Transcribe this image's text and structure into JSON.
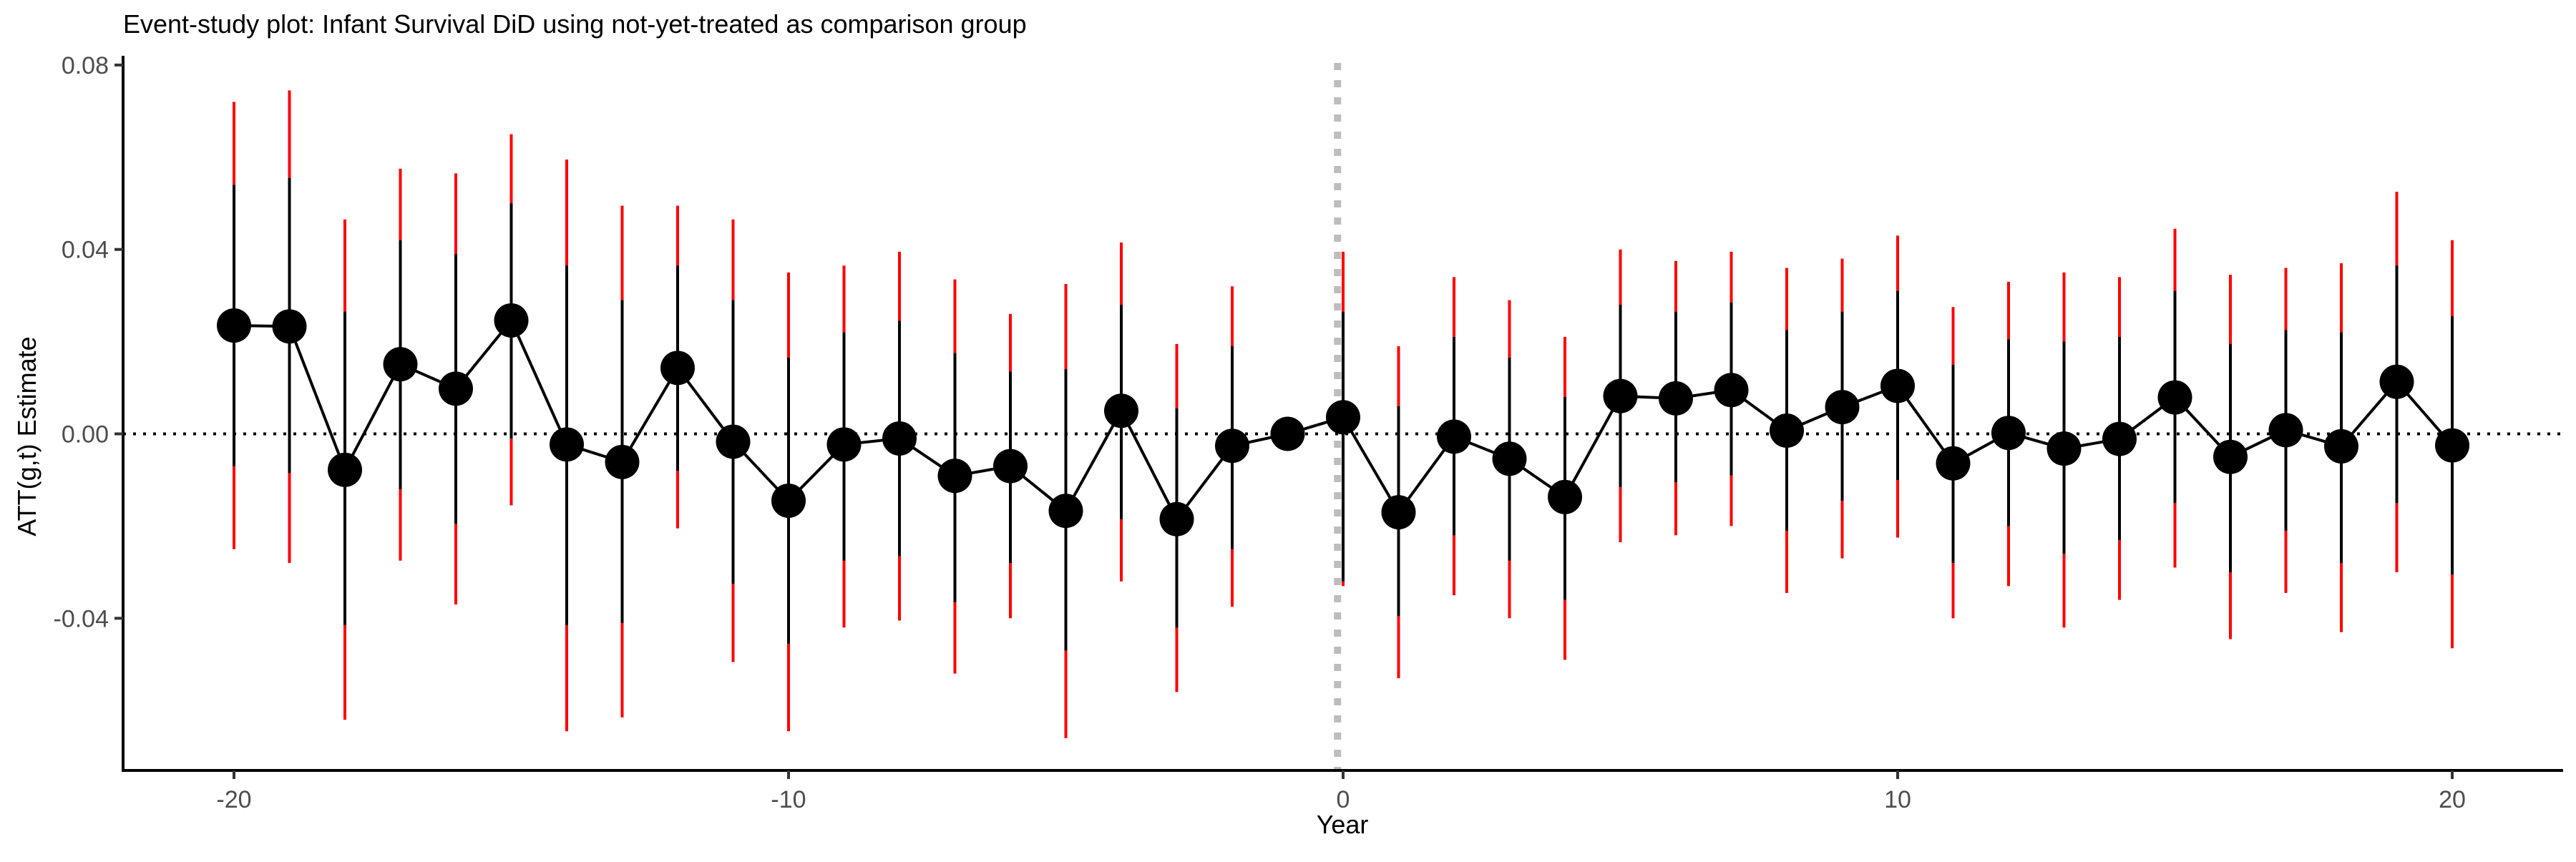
{
  "chart_data": {
    "type": "line",
    "title": "Event-study plot: Infant Survival DiD using not-yet-treated as comparison group",
    "xlabel": "Year",
    "ylabel": "ATT(g,t) Estimate",
    "xlim": [
      -22,
      22
    ],
    "ylim": [
      -0.073,
      0.082
    ],
    "x_ticks": [
      -20,
      -10,
      0,
      10,
      20
    ],
    "x_tick_labels": [
      "-20",
      "-10",
      "0",
      "10",
      "20"
    ],
    "y_ticks": [
      -0.04,
      0.0,
      0.04,
      0.08
    ],
    "y_tick_labels": [
      "-0.04",
      "0.00",
      "0.04",
      "0.08"
    ],
    "grid": false,
    "legend": "none",
    "reference_lines": {
      "horizontal_y": 0,
      "horizontal_style": "dotted black",
      "vertical_x": -0.1,
      "vertical_style": "dotted grey"
    },
    "colors": {
      "points": "#000000",
      "line": "#000000",
      "inner_interval": "#000000",
      "outer_interval": "#ff0000",
      "vline": "#bdbdbd"
    },
    "series": [
      {
        "x": [
          -20,
          -19,
          -18,
          -17,
          -16,
          -15,
          -14,
          -13,
          -12,
          -11,
          -10,
          -9,
          -8,
          -7,
          -6,
          -5,
          -4,
          -3,
          -2,
          -1,
          0,
          1,
          2,
          3,
          4,
          5,
          6,
          7,
          8,
          9,
          10,
          11,
          12,
          13,
          14,
          15,
          16,
          17,
          18,
          19,
          20
        ],
        "estimate": [
          0.0235,
          0.0233,
          -0.0078,
          0.0151,
          0.0098,
          0.0246,
          -0.0023,
          -0.0061,
          0.0143,
          -0.0017,
          -0.0145,
          -0.0023,
          -0.001,
          -0.0091,
          -0.007,
          -0.0167,
          0.005,
          -0.0185,
          -0.0026,
          0.0,
          0.0036,
          -0.017,
          -0.0006,
          -0.0054,
          -0.0137,
          0.0082,
          0.0077,
          0.0095,
          0.0007,
          0.0058,
          0.0104,
          -0.0064,
          0.0002,
          -0.0032,
          -0.0011,
          0.0079,
          -0.005,
          0.0008,
          -0.0027,
          0.0113,
          -0.0025
        ],
        "inner_low": [
          -0.007,
          -0.0085,
          -0.0415,
          -0.012,
          -0.0195,
          -0.001,
          -0.0415,
          -0.041,
          -0.008,
          -0.0325,
          -0.0455,
          -0.0275,
          -0.0265,
          -0.0365,
          -0.028,
          -0.047,
          -0.0185,
          -0.042,
          -0.025,
          0.0,
          -0.032,
          -0.0395,
          -0.022,
          -0.0275,
          -0.036,
          -0.0115,
          -0.0105,
          -0.009,
          -0.021,
          -0.0145,
          -0.01,
          -0.028,
          -0.02,
          -0.026,
          -0.023,
          -0.015,
          -0.03,
          -0.021,
          -0.028,
          -0.015,
          -0.0305
        ],
        "inner_high": [
          0.054,
          0.0555,
          0.0265,
          0.042,
          0.039,
          0.05,
          0.0365,
          0.029,
          0.0365,
          0.029,
          0.0165,
          0.022,
          0.0245,
          0.0175,
          0.0135,
          0.014,
          0.028,
          0.0055,
          0.019,
          0.0,
          0.0265,
          0.006,
          0.021,
          0.0165,
          0.008,
          0.028,
          0.0265,
          0.0285,
          0.0225,
          0.0265,
          0.031,
          0.015,
          0.0205,
          0.02,
          0.021,
          0.031,
          0.0195,
          0.0225,
          0.022,
          0.0365,
          0.0255
        ],
        "outer_low": [
          -0.025,
          -0.028,
          -0.062,
          -0.0275,
          -0.037,
          -0.0155,
          -0.0645,
          -0.0615,
          -0.0205,
          -0.0495,
          -0.0645,
          -0.042,
          -0.0405,
          -0.052,
          -0.04,
          -0.066,
          -0.032,
          -0.056,
          -0.0375,
          0.0,
          -0.033,
          -0.053,
          -0.035,
          -0.04,
          -0.049,
          -0.0235,
          -0.022,
          -0.02,
          -0.0345,
          -0.027,
          -0.0225,
          -0.04,
          -0.033,
          -0.042,
          -0.036,
          -0.029,
          -0.0445,
          -0.0345,
          -0.043,
          -0.03,
          -0.0465
        ],
        "outer_high": [
          0.072,
          0.0745,
          0.0465,
          0.0575,
          0.0565,
          0.065,
          0.0595,
          0.0495,
          0.0495,
          0.0465,
          0.035,
          0.0365,
          0.0395,
          0.0335,
          0.026,
          0.0325,
          0.0415,
          0.0195,
          0.032,
          0.0,
          0.0395,
          0.019,
          0.034,
          0.029,
          0.021,
          0.04,
          0.0375,
          0.0395,
          0.036,
          0.038,
          0.043,
          0.0275,
          0.033,
          0.035,
          0.034,
          0.0445,
          0.0345,
          0.036,
          0.037,
          0.0525,
          0.042
        ]
      }
    ]
  }
}
